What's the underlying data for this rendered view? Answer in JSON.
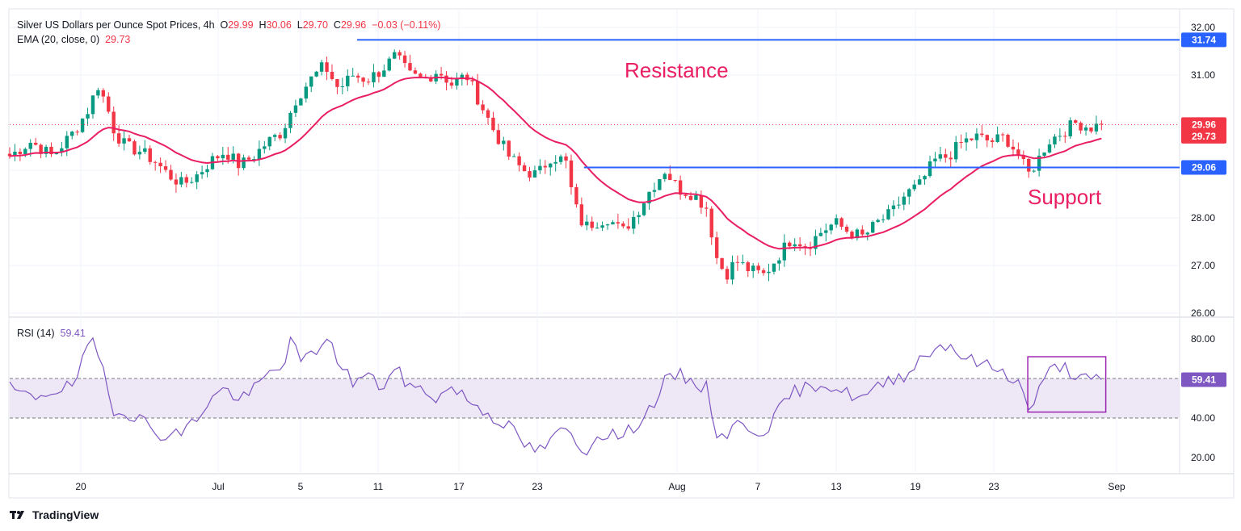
{
  "header": {
    "title": "Silver US Dollars per Ounce Spot Prices, 4h",
    "ohlc": {
      "o_label": "O",
      "o": "29.99",
      "h_label": "H",
      "h": "30.06",
      "l_label": "L",
      "l": "29.70",
      "c_label": "C",
      "c": "29.96",
      "change": "−0.03 (−0.11%)"
    },
    "ema_label": "EMA (20, close, 0)",
    "ema_value": "29.73",
    "rsi_label": "RSI (14)",
    "rsi_value": "59.41"
  },
  "footer": {
    "brand": "TradingView",
    "logo_icon": "tradingview-logo-icon"
  },
  "colors": {
    "up": "#089981",
    "down": "#f23645",
    "ema": "#e91e63",
    "level": "#2962ff",
    "annotation": "#e91e63",
    "rsi": "#7e57c2",
    "rsi_band": "#ede7f6",
    "last_price_tag": "#f23645",
    "ema_tag": "#f23645"
  },
  "chart_data": [
    {
      "type": "candlestick",
      "title": "Silver US Dollars per Ounce Spot Prices, 4h",
      "interval": "4h",
      "y_ticks": [
        "26.00",
        "27.00",
        "28.00",
        "29.00",
        "30.00",
        "31.00",
        "32.00"
      ],
      "ylim": [
        25.95,
        32.3
      ],
      "x_ticks": [
        "20",
        "Jul",
        "5",
        "11",
        "17",
        "23",
        "Aug",
        "7",
        "13",
        "19",
        "23",
        "Sep"
      ],
      "grid": true,
      "last_price": 29.96,
      "ema_last": 29.73,
      "price_tags": [
        "29.96",
        "29.73"
      ],
      "levels": [
        {
          "label": "Resistance",
          "value": 31.74,
          "tag": "31.74",
          "x_start_day": 24.5
        },
        {
          "label": "Support",
          "value": 29.06,
          "tag": "29.06",
          "x_start_day": 40.5
        }
      ],
      "close_path": [
        [
          0,
          29.3
        ],
        [
          1.5,
          29.6
        ],
        [
          3,
          29.3
        ],
        [
          4.5,
          29.8
        ],
        [
          5.6,
          30.3
        ],
        [
          6.2,
          30.8
        ],
        [
          6.8,
          30.4
        ],
        [
          7.4,
          29.8
        ],
        [
          8.2,
          29.5
        ],
        [
          9.2,
          29.4
        ],
        [
          10.2,
          29.2
        ],
        [
          11.2,
          28.9
        ],
        [
          12.2,
          28.7
        ],
        [
          13.2,
          28.9
        ],
        [
          14.2,
          29.2
        ],
        [
          15.2,
          29.4
        ],
        [
          16.2,
          29.1
        ],
        [
          17.2,
          29.3
        ],
        [
          18.2,
          29.6
        ],
        [
          19.2,
          29.8
        ],
        [
          20.2,
          30.5
        ],
        [
          21.2,
          30.9
        ],
        [
          22.2,
          31.2
        ],
        [
          23.2,
          30.7
        ],
        [
          24.2,
          31.0
        ],
        [
          25.2,
          30.9
        ],
        [
          26.2,
          31.1
        ],
        [
          27.2,
          31.4
        ],
        [
          28.2,
          31.0
        ],
        [
          29.2,
          30.9
        ],
        [
          30.2,
          31.1
        ],
        [
          31.2,
          30.8
        ],
        [
          32.2,
          31.0
        ],
        [
          33.2,
          30.4
        ],
        [
          34.2,
          29.8
        ],
        [
          35.2,
          29.3
        ],
        [
          36.2,
          29.0
        ],
        [
          37.2,
          28.9
        ],
        [
          38.2,
          29.3
        ],
        [
          39.2,
          29.2
        ],
        [
          39.8,
          28.3
        ],
        [
          40.5,
          27.8
        ],
        [
          41.2,
          27.9
        ],
        [
          42.2,
          28.0
        ],
        [
          43.2,
          27.7
        ],
        [
          44.2,
          28.1
        ],
        [
          45.2,
          28.6
        ],
        [
          46.2,
          29.0
        ],
        [
          47.2,
          28.6
        ],
        [
          48.2,
          28.5
        ],
        [
          49.2,
          28.2
        ],
        [
          49.8,
          27.2
        ],
        [
          50.5,
          26.8
        ],
        [
          51.2,
          27.1
        ],
        [
          52.2,
          26.9
        ],
        [
          53.2,
          26.8
        ],
        [
          54.2,
          27.2
        ],
        [
          55.2,
          27.6
        ],
        [
          56.2,
          27.4
        ],
        [
          57.2,
          27.7
        ],
        [
          58.2,
          27.9
        ],
        [
          59.2,
          27.7
        ],
        [
          60.2,
          27.6
        ],
        [
          61.2,
          27.9
        ],
        [
          62.2,
          28.1
        ],
        [
          63.2,
          28.5
        ],
        [
          64.2,
          28.7
        ],
        [
          65.2,
          29.2
        ],
        [
          66.2,
          29.3
        ],
        [
          67.2,
          29.6
        ],
        [
          68.2,
          29.7
        ],
        [
          69.2,
          29.6
        ],
        [
          70.2,
          29.7
        ],
        [
          71.2,
          29.3
        ],
        [
          71.8,
          28.9
        ],
        [
          72.5,
          29.2
        ],
        [
          73.2,
          29.6
        ],
        [
          74.2,
          29.8
        ],
        [
          75.2,
          30.0
        ],
        [
          76.2,
          29.9
        ],
        [
          77.0,
          29.96
        ]
      ]
    },
    {
      "type": "line",
      "title": "RSI (14)",
      "y_ticks": [
        "20.00",
        "40.00",
        "80.00"
      ],
      "ylim": [
        15,
        86
      ],
      "band": [
        40,
        60
      ],
      "last_value": 59.41,
      "highlight_box": {
        "x_day": [
          71.8,
          77.3
        ],
        "y": [
          43,
          71
        ]
      },
      "values_path": [
        [
          0,
          55
        ],
        [
          1.5,
          50
        ],
        [
          3,
          54
        ],
        [
          4.5,
          56
        ],
        [
          5.3,
          72
        ],
        [
          5.8,
          78
        ],
        [
          6.5,
          68
        ],
        [
          7.2,
          45
        ],
        [
          8.2,
          43
        ],
        [
          9.2,
          40
        ],
        [
          10.2,
          33
        ],
        [
          11.2,
          31
        ],
        [
          12.2,
          33
        ],
        [
          13.2,
          40
        ],
        [
          14.2,
          50
        ],
        [
          15.2,
          55
        ],
        [
          16.2,
          49
        ],
        [
          17.2,
          54
        ],
        [
          18.2,
          62
        ],
        [
          19.2,
          66
        ],
        [
          19.8,
          79
        ],
        [
          20.5,
          69
        ],
        [
          21.5,
          72
        ],
        [
          22.2,
          82
        ],
        [
          23.2,
          69
        ],
        [
          24.2,
          58
        ],
        [
          25.2,
          62
        ],
        [
          26.2,
          55
        ],
        [
          27.2,
          65
        ],
        [
          28.2,
          56
        ],
        [
          29.2,
          54
        ],
        [
          30.2,
          50
        ],
        [
          31.2,
          56
        ],
        [
          32.2,
          50
        ],
        [
          33.2,
          45
        ],
        [
          34.2,
          40
        ],
        [
          35.2,
          36
        ],
        [
          36.2,
          27
        ],
        [
          37.2,
          23
        ],
        [
          38.2,
          28
        ],
        [
          39.2,
          36
        ],
        [
          39.8,
          27
        ],
        [
          40.5,
          22
        ],
        [
          41.2,
          30
        ],
        [
          42.2,
          33
        ],
        [
          43.2,
          30
        ],
        [
          44.2,
          37
        ],
        [
          45.2,
          45
        ],
        [
          46.2,
          58
        ],
        [
          47.2,
          62
        ],
        [
          48.2,
          58
        ],
        [
          49.2,
          55
        ],
        [
          49.8,
          33
        ],
        [
          50.5,
          31
        ],
        [
          51.2,
          37
        ],
        [
          52.2,
          35
        ],
        [
          53.2,
          33
        ],
        [
          54.2,
          43
        ],
        [
          55.2,
          53
        ],
        [
          56.2,
          55
        ],
        [
          57.2,
          58
        ],
        [
          58.2,
          55
        ],
        [
          59.2,
          52
        ],
        [
          60.2,
          50
        ],
        [
          61.2,
          55
        ],
        [
          62.2,
          60
        ],
        [
          63.2,
          62
        ],
        [
          64.2,
          70
        ],
        [
          65.2,
          75
        ],
        [
          66.2,
          78
        ],
        [
          67.2,
          71
        ],
        [
          68.2,
          68
        ],
        [
          69.2,
          66
        ],
        [
          70.2,
          63
        ],
        [
          71.2,
          58
        ],
        [
          71.8,
          44
        ],
        [
          72.5,
          52
        ],
        [
          73.2,
          63
        ],
        [
          74.2,
          67
        ],
        [
          75.2,
          61
        ],
        [
          76.2,
          59
        ],
        [
          77.0,
          59.41
        ]
      ]
    }
  ],
  "annotations": {
    "resistance": "Resistance",
    "support": "Support"
  }
}
